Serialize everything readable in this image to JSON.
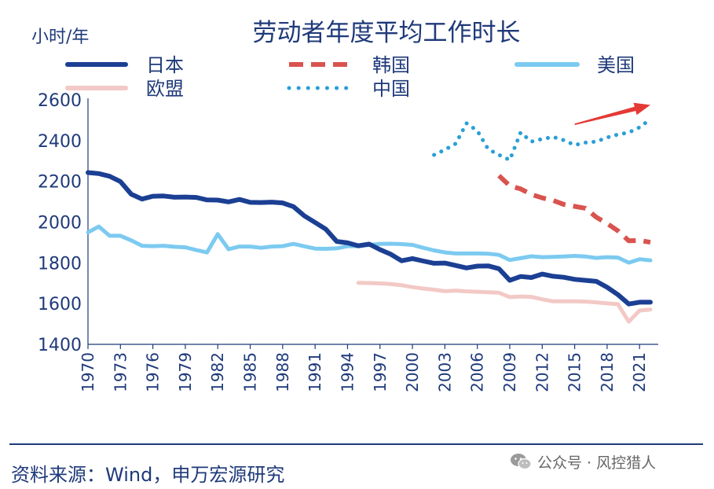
{
  "chart_data": {
    "type": "line",
    "title": "劳动者年度平均工作时长",
    "ylabel": "小时/年",
    "xlabel": "",
    "ylim": [
      1400,
      2600
    ],
    "yticks": [
      1400,
      1600,
      1800,
      2000,
      2200,
      2400,
      2600
    ],
    "xlim": [
      1970,
      2022
    ],
    "xticks": [
      "1970",
      "1973",
      "1976",
      "1979",
      "1982",
      "1985",
      "1988",
      "1991",
      "1994",
      "1997",
      "2000",
      "2003",
      "2006",
      "2009",
      "2012",
      "2015",
      "2018",
      "2021"
    ],
    "legend": [
      "日本",
      "韩国",
      "美国",
      "欧盟",
      "中国"
    ],
    "series": [
      {
        "name": "日本",
        "color": "#1b3f93",
        "style": "solid",
        "x": [
          1970,
          1971,
          1972,
          1973,
          1974,
          1975,
          1976,
          1977,
          1978,
          1979,
          1980,
          1981,
          1982,
          1983,
          1984,
          1985,
          1986,
          1987,
          1988,
          1989,
          1990,
          1991,
          1992,
          1993,
          1994,
          1995,
          1996,
          1997,
          1998,
          1999,
          2000,
          2001,
          2002,
          2003,
          2004,
          2005,
          2006,
          2007,
          2008,
          2009,
          2010,
          2011,
          2012,
          2013,
          2014,
          2015,
          2016,
          2017,
          2018,
          2019,
          2020,
          2021,
          2022
        ],
        "values": [
          2243,
          2238,
          2225,
          2199,
          2137,
          2113,
          2127,
          2128,
          2122,
          2123,
          2121,
          2109,
          2108,
          2099,
          2111,
          2097,
          2096,
          2098,
          2094,
          2076,
          2031,
          1998,
          1965,
          1905,
          1898,
          1884,
          1892,
          1865,
          1842,
          1810,
          1821,
          1809,
          1798,
          1799,
          1787,
          1775,
          1784,
          1785,
          1771,
          1714,
          1733,
          1728,
          1745,
          1734,
          1729,
          1719,
          1714,
          1709,
          1680,
          1644,
          1598,
          1607,
          1607
        ]
      },
      {
        "name": "韩国",
        "color": "#d9534f",
        "style": "dashed",
        "x": [
          2008,
          2009,
          2010,
          2011,
          2012,
          2013,
          2014,
          2015,
          2016,
          2017,
          2018,
          2019,
          2020,
          2021,
          2022
        ],
        "values": [
          2228,
          2178,
          2163,
          2136,
          2119,
          2106,
          2087,
          2077,
          2068,
          2024,
          1993,
          1957,
          1908,
          1910,
          1901
        ]
      },
      {
        "name": "美国",
        "color": "#7ccaf0",
        "style": "solid",
        "x": [
          1970,
          1971,
          1972,
          1973,
          1974,
          1975,
          1976,
          1977,
          1978,
          1979,
          1980,
          1981,
          1982,
          1983,
          1984,
          1985,
          1986,
          1987,
          1988,
          1989,
          1990,
          1991,
          1992,
          1993,
          1994,
          1995,
          1996,
          1997,
          1998,
          1999,
          2000,
          2001,
          2002,
          2003,
          2004,
          2005,
          2006,
          2007,
          2008,
          2009,
          2010,
          2011,
          2012,
          2013,
          2014,
          2015,
          2016,
          2017,
          2018,
          2019,
          2020,
          2021,
          2022
        ],
        "values": [
          1950,
          1978,
          1933,
          1933,
          1910,
          1884,
          1882,
          1884,
          1879,
          1876,
          1863,
          1851,
          1941,
          1867,
          1880,
          1880,
          1874,
          1880,
          1882,
          1893,
          1881,
          1870,
          1869,
          1871,
          1882,
          1882,
          1888,
          1893,
          1894,
          1892,
          1888,
          1874,
          1861,
          1851,
          1846,
          1846,
          1846,
          1845,
          1839,
          1814,
          1823,
          1832,
          1828,
          1829,
          1831,
          1834,
          1831,
          1824,
          1828,
          1826,
          1801,
          1818,
          1812
        ]
      },
      {
        "name": "欧盟",
        "color": "#f2c9c6",
        "style": "solid",
        "x": [
          1995,
          1996,
          1997,
          1998,
          1999,
          2000,
          2001,
          2002,
          2003,
          2004,
          2005,
          2006,
          2007,
          2008,
          2009,
          2010,
          2011,
          2012,
          2013,
          2014,
          2015,
          2016,
          2017,
          2018,
          2019,
          2020,
          2021,
          2022
        ],
        "values": [
          1702,
          1701,
          1699,
          1696,
          1690,
          1681,
          1674,
          1668,
          1661,
          1664,
          1660,
          1658,
          1656,
          1653,
          1632,
          1635,
          1633,
          1621,
          1611,
          1611,
          1611,
          1610,
          1606,
          1601,
          1597,
          1511,
          1566,
          1571
        ]
      },
      {
        "name": "中国",
        "color": "#2a9fd6",
        "style": "dotted",
        "x": [
          2002,
          2003,
          2004,
          2005,
          2006,
          2007,
          2008,
          2009,
          2010,
          2011,
          2012,
          2013,
          2014,
          2015,
          2016,
          2017,
          2018,
          2019,
          2020,
          2021,
          2022
        ],
        "values": [
          2330,
          2355,
          2385,
          2485,
          2448,
          2358,
          2330,
          2305,
          2440,
          2395,
          2408,
          2418,
          2402,
          2378,
          2390,
          2395,
          2415,
          2430,
          2440,
          2465,
          2505
        ]
      }
    ],
    "annotation": {
      "type": "arrow",
      "color": "#e53935",
      "from": [
        2015,
        2480
      ],
      "to": [
        2022,
        2575
      ]
    }
  },
  "footer": {
    "source": "资料来源：Wind，申万宏源研究",
    "watermark": "公众号 · 风控猎人",
    "watermark_icon": "wechat-icon"
  }
}
